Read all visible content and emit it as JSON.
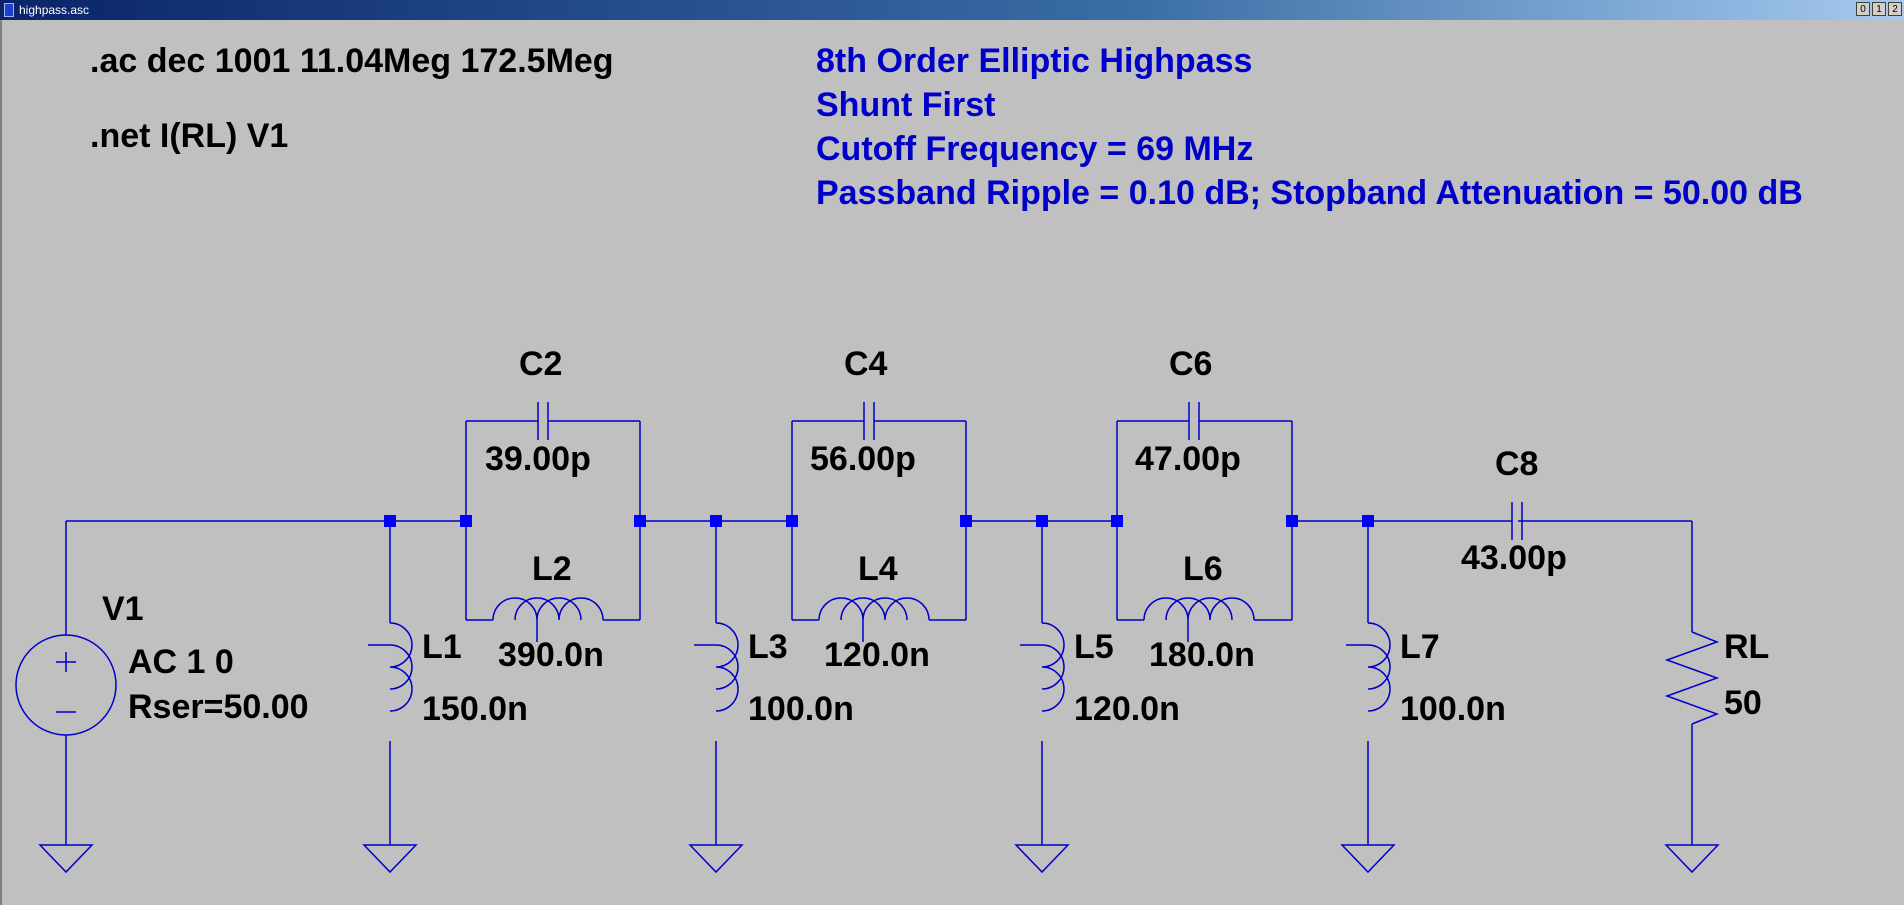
{
  "window": {
    "title": "highpass.asc",
    "buttons": [
      "0",
      "1",
      "2"
    ]
  },
  "directives": {
    "ac": ".ac dec 1001 11.04Meg 172.5Meg",
    "net": ".net I(RL) V1"
  },
  "comment": {
    "line1": "8th Order Elliptic Highpass",
    "line2": "Shunt First",
    "line3": "Cutoff Frequency = 69 MHz",
    "line4": "Passband Ripple = 0.10 dB; Stopband Attenuation = 50.00 dB"
  },
  "components": {
    "V1": {
      "name": "V1",
      "value": "AC 1 0",
      "extra": "Rser=50.00"
    },
    "L1": {
      "name": "L1",
      "value": "150.0n"
    },
    "C2": {
      "name": "C2",
      "value": "39.00p"
    },
    "L2": {
      "name": "L2",
      "value": "390.0n"
    },
    "L3": {
      "name": "L3",
      "value": "100.0n"
    },
    "C4": {
      "name": "C4",
      "value": "56.00p"
    },
    "L4": {
      "name": "L4",
      "value": "120.0n"
    },
    "L5": {
      "name": "L5",
      "value": "120.0n"
    },
    "C6": {
      "name": "C6",
      "value": "47.00p"
    },
    "L6": {
      "name": "L6",
      "value": "180.0n"
    },
    "L7": {
      "name": "L7",
      "value": "100.0n"
    },
    "C8": {
      "name": "C8",
      "value": "43.00p"
    },
    "RL": {
      "name": "RL",
      "value": "50"
    }
  },
  "colors": {
    "background": "#c0c0c0",
    "wire": "#0000c8",
    "junction": "#0000ff",
    "directive_text": "#000000",
    "comment_text": "#0000c8"
  }
}
